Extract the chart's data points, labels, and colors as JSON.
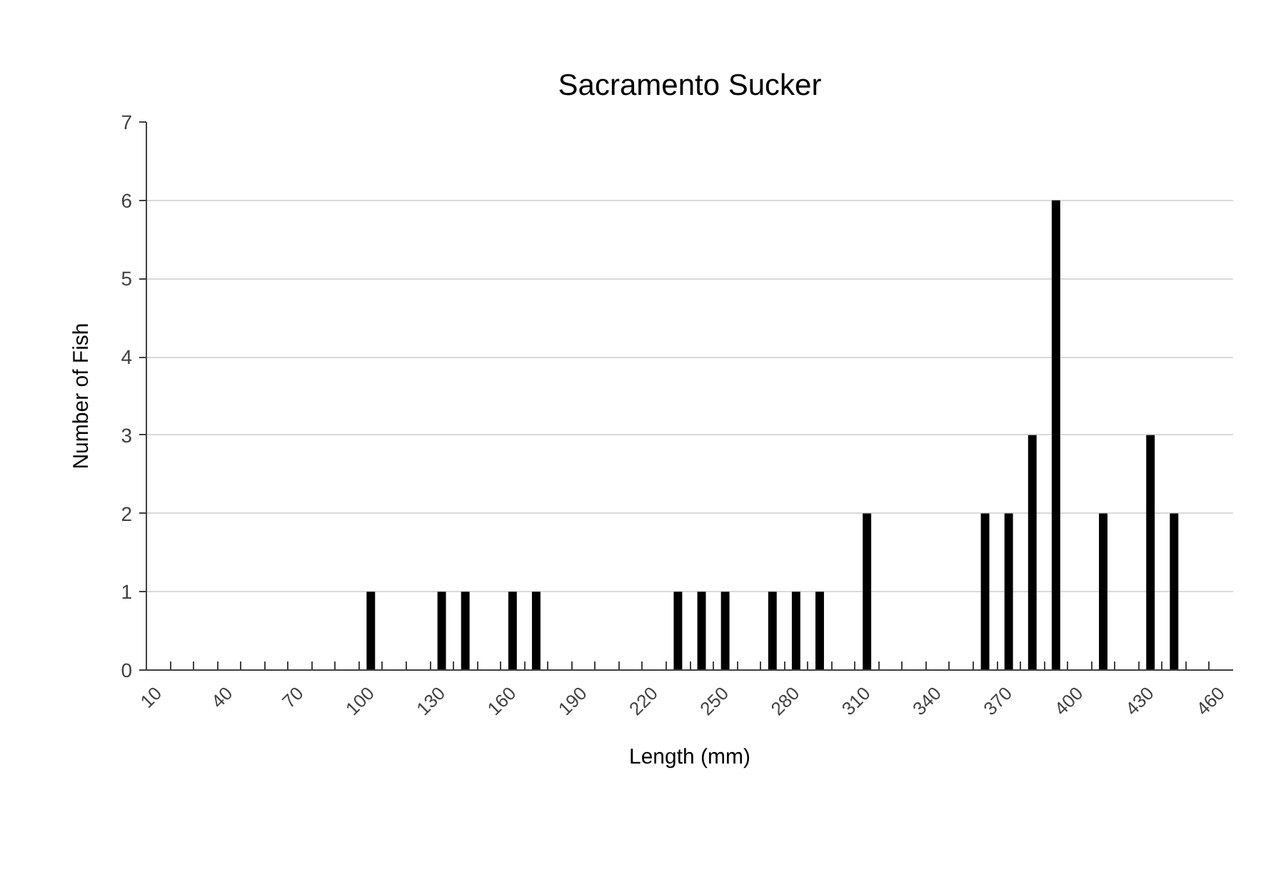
{
  "chart_data": {
    "type": "bar",
    "title": "Sacramento Sucker",
    "xlabel": "Length (mm)",
    "ylabel": "Number of Fish",
    "categories": [
      "10",
      null,
      null,
      "40",
      null,
      null,
      "70",
      null,
      null,
      "100",
      null,
      null,
      "130",
      null,
      null,
      "160",
      null,
      null,
      "190",
      null,
      null,
      "220",
      null,
      null,
      "250",
      null,
      null,
      "280",
      null,
      null,
      "310",
      null,
      null,
      "340",
      null,
      null,
      "370",
      null,
      null,
      "400",
      null,
      null,
      "430",
      null,
      null,
      "460"
    ],
    "values": [
      0,
      0,
      0,
      0,
      0,
      0,
      0,
      0,
      0,
      1,
      0,
      0,
      1,
      1,
      0,
      1,
      1,
      0,
      0,
      0,
      0,
      0,
      1,
      1,
      1,
      0,
      1,
      1,
      1,
      0,
      2,
      0,
      0,
      0,
      0,
      2,
      2,
      3,
      6,
      0,
      2,
      0,
      3,
      2,
      0,
      0
    ],
    "color": "#000000",
    "ylim": [
      0,
      7
    ],
    "yticks": [
      0,
      1,
      2,
      3,
      4,
      5,
      6,
      7
    ],
    "grid": "y"
  }
}
